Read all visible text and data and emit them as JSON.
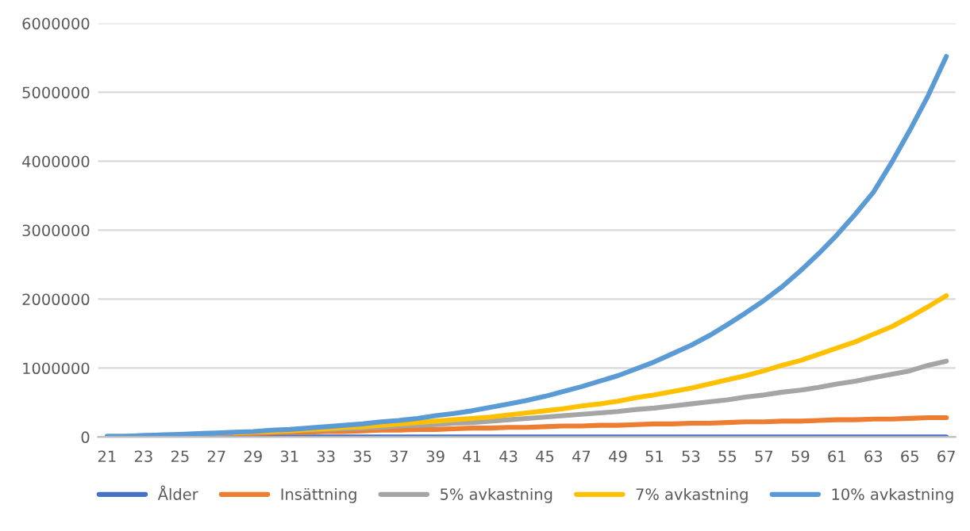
{
  "chart_data": {
    "type": "line",
    "categories": [
      "21",
      null,
      "23",
      null,
      "25",
      null,
      "27",
      null,
      "29",
      null,
      "31",
      null,
      "33",
      null,
      "35",
      null,
      "37",
      null,
      "39",
      null,
      "41",
      null,
      "43",
      null,
      "45",
      null,
      "47",
      null,
      "49",
      null,
      "51",
      null,
      "53",
      null,
      "55",
      null,
      "57",
      null,
      "59",
      null,
      "61",
      null,
      "63",
      null,
      "65",
      null,
      "67"
    ],
    "series": [
      {
        "name": "Ålder",
        "color": "#4472c4",
        "values": [
          0,
          0,
          0,
          0,
          0,
          0,
          0,
          0,
          0,
          0,
          0,
          0,
          0,
          0,
          0,
          0,
          0,
          0,
          0,
          0,
          0,
          0,
          0,
          0,
          0,
          0,
          0,
          0,
          0,
          0,
          0,
          0,
          0,
          0,
          0,
          0,
          0,
          0,
          0,
          0,
          0,
          0,
          0,
          0,
          0,
          0,
          0
        ]
      },
      {
        "name": "Insättning",
        "color": "#ed7d31",
        "values": [
          null,
          null,
          null,
          null,
          null,
          null,
          40000,
          50000,
          50000,
          60000,
          70000,
          70000,
          80000,
          80000,
          90000,
          100000,
          100000,
          110000,
          110000,
          120000,
          130000,
          130000,
          140000,
          140000,
          150000,
          160000,
          160000,
          170000,
          170000,
          180000,
          190000,
          190000,
          200000,
          200000,
          210000,
          220000,
          220000,
          230000,
          230000,
          240000,
          250000,
          250000,
          260000,
          260000,
          270000,
          280000,
          280000
        ]
      },
      {
        "name": "5% avkastning",
        "color": "#a5a5a5",
        "values": [
          10000,
          10000,
          20000,
          30000,
          30000,
          40000,
          50000,
          60000,
          70000,
          80000,
          90000,
          100000,
          110000,
          120000,
          130000,
          140000,
          160000,
          170000,
          180000,
          200000,
          210000,
          230000,
          250000,
          270000,
          290000,
          310000,
          330000,
          350000,
          370000,
          400000,
          420000,
          450000,
          480000,
          510000,
          540000,
          580000,
          610000,
          650000,
          680000,
          720000,
          770000,
          810000,
          860000,
          910000,
          960000,
          1040000,
          1100000
        ]
      },
      {
        "name": "7% avkastning",
        "color": "#ffc000",
        "values": [
          null,
          null,
          null,
          null,
          null,
          null,
          null,
          60000,
          70000,
          80000,
          90000,
          110000,
          120000,
          140000,
          150000,
          170000,
          190000,
          210000,
          230000,
          250000,
          270000,
          290000,
          320000,
          350000,
          380000,
          410000,
          450000,
          480000,
          520000,
          570000,
          610000,
          660000,
          710000,
          770000,
          830000,
          890000,
          960000,
          1040000,
          1110000,
          1200000,
          1290000,
          1380000,
          1490000,
          1600000,
          1740000,
          1890000,
          2050000
        ]
      },
      {
        "name": "10% avkastning",
        "color": "#5b9bd5",
        "values": [
          10000,
          10000,
          20000,
          30000,
          40000,
          50000,
          60000,
          70000,
          80000,
          100000,
          110000,
          130000,
          150000,
          170000,
          190000,
          220000,
          240000,
          270000,
          310000,
          340000,
          380000,
          430000,
          480000,
          530000,
          590000,
          660000,
          730000,
          810000,
          890000,
          990000,
          1090000,
          1210000,
          1330000,
          1470000,
          1630000,
          1800000,
          1980000,
          2180000,
          2410000,
          2660000,
          2930000,
          3230000,
          3550000,
          3980000,
          4450000,
          4950000,
          5520000
        ]
      }
    ],
    "ylim": [
      0,
      6000000
    ],
    "yticks": [
      0,
      1000000,
      2000000,
      3000000,
      4000000,
      5000000,
      6000000
    ],
    "grid": "y",
    "legend": "bottom",
    "marker": "none",
    "line_style": "solid"
  }
}
